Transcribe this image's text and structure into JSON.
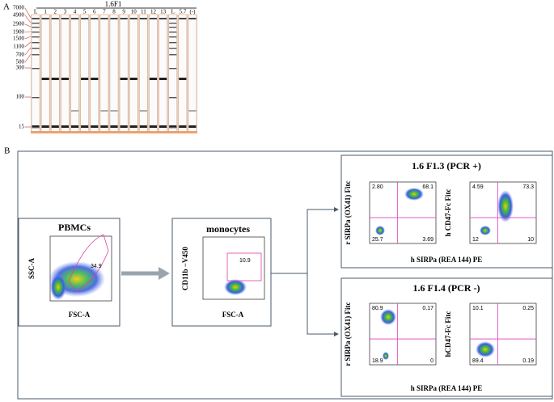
{
  "panel_a": {
    "label": "A",
    "title": "1.6F1",
    "lanes": [
      "L",
      "1",
      "2",
      "3",
      "4",
      "5",
      "6",
      "7",
      "8",
      "9",
      "10",
      "11",
      "12",
      "13",
      "L",
      "5.7",
      "(-)"
    ],
    "ladder": [
      "7000",
      "4900",
      "2900",
      "1900",
      "1500",
      "1100",
      "700",
      "500",
      "300",
      "100",
      "15"
    ]
  },
  "panel_b": {
    "label": "B",
    "pbmc": {
      "title": "PBMCs",
      "y_label": "SSC-A",
      "x_label": "FSC-A",
      "gate": "34.9"
    },
    "monocytes": {
      "title": "monocytes",
      "y_label": "CD11b −V450",
      "x_label": "FSC-A",
      "gate": "10.9"
    },
    "pcr_pos": {
      "title": "1.6 F1.3 (PCR +)",
      "x_label": "h SIRPa (REA 144) PE",
      "plots": [
        {
          "y_label": "r SIRPa (OX41) Fitc",
          "quadrants": [
            "2.80",
            "68.1",
            "25.7",
            "3.69"
          ]
        },
        {
          "y_label": "h CD47-Fc Fitc",
          "quadrants": [
            "4.59",
            "73.3",
            "12",
            "10"
          ]
        }
      ]
    },
    "pcr_neg": {
      "title": "1.6 F1.4 (PCR -)",
      "x_label": "h SIRPa (REA 144) PE",
      "plots": [
        {
          "y_label": "r SIRPa (OX41) Fitc",
          "quadrants": [
            "80.9",
            "0.17",
            "18.9",
            "0"
          ]
        },
        {
          "y_label": "hCD47-Fc Fitc",
          "quadrants": [
            "10.1",
            "0.25",
            "89.4",
            "0.19"
          ]
        }
      ]
    }
  }
}
